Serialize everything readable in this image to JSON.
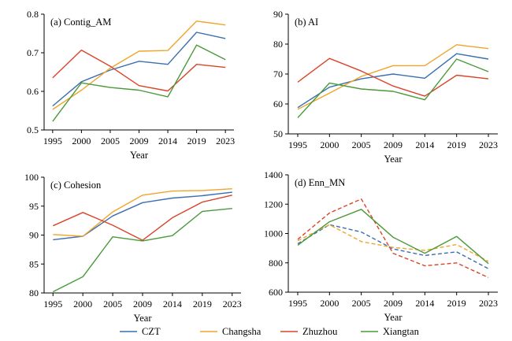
{
  "colors": {
    "CZT": "#3a6fb0",
    "Changsha": "#f0a52a",
    "Zhuzhou": "#d9452a",
    "Xiangtan": "#4a9a3a"
  },
  "legend": {
    "placement": "bottom-center",
    "items": [
      "CZT",
      "Changsha",
      "Zhuzhou",
      "Xiangtan"
    ]
  },
  "chart_data": [
    {
      "type": "line",
      "title": "(a) Contig_AM",
      "xlabel": "Year",
      "ylabel": "",
      "categories": [
        "1995",
        "2000",
        "2005",
        "2009",
        "2014",
        "2019",
        "2023"
      ],
      "ylim": [
        0.5,
        0.8
      ],
      "yticks": [
        "0.5",
        "0.6",
        "0.7",
        "0.8"
      ],
      "series": [
        {
          "name": "CZT",
          "values": [
            0.562,
            0.625,
            0.655,
            0.678,
            0.67,
            0.753,
            0.737
          ]
        },
        {
          "name": "Changsha",
          "values": [
            0.553,
            0.603,
            0.66,
            0.704,
            0.706,
            0.782,
            0.772
          ]
        },
        {
          "name": "Zhuzhou",
          "values": [
            0.635,
            0.707,
            0.665,
            0.615,
            0.601,
            0.67,
            0.662
          ]
        },
        {
          "name": "Xiangtan",
          "values": [
            0.522,
            0.622,
            0.61,
            0.603,
            0.586,
            0.72,
            0.682
          ]
        }
      ]
    },
    {
      "type": "line",
      "title": "(b) AI",
      "xlabel": "Year",
      "ylabel": "",
      "categories": [
        "1995",
        "2000",
        "2005",
        "2009",
        "2014",
        "2019",
        "2023"
      ],
      "ylim": [
        50,
        90
      ],
      "yticks": [
        "50",
        "60",
        "70",
        "80",
        "90"
      ],
      "series": [
        {
          "name": "CZT",
          "values": [
            58.8,
            65.6,
            68.4,
            70.0,
            68.6,
            76.8,
            75.0
          ]
        },
        {
          "name": "Changsha",
          "values": [
            58.2,
            63.6,
            69.2,
            72.8,
            72.8,
            79.8,
            78.5
          ]
        },
        {
          "name": "Zhuzhou",
          "values": [
            67.3,
            75.2,
            71.0,
            66.0,
            62.6,
            69.6,
            68.4
          ]
        },
        {
          "name": "Xiangtan",
          "values": [
            55.4,
            67.0,
            65.0,
            64.2,
            61.4,
            75.0,
            70.8
          ]
        }
      ]
    },
    {
      "type": "line",
      "title": "(c) Cohesion",
      "xlabel": "Year",
      "ylabel": "",
      "categories": [
        "1995",
        "2000",
        "2005",
        "2009",
        "2014",
        "2019",
        "2023"
      ],
      "ylim": [
        80,
        100
      ],
      "yticks": [
        "80",
        "85",
        "90",
        "95",
        "100"
      ],
      "series": [
        {
          "name": "CZT",
          "values": [
            89.2,
            89.8,
            93.3,
            95.6,
            96.4,
            96.8,
            97.4
          ]
        },
        {
          "name": "Changsha",
          "values": [
            90.1,
            89.8,
            94.0,
            96.9,
            97.6,
            97.7,
            98.0
          ]
        },
        {
          "name": "Zhuzhou",
          "values": [
            91.6,
            93.9,
            91.7,
            89.1,
            93.0,
            95.7,
            96.9
          ]
        },
        {
          "name": "Xiangtan",
          "values": [
            80.2,
            82.8,
            89.7,
            89.0,
            89.9,
            94.1,
            94.6
          ]
        }
      ]
    },
    {
      "type": "line",
      "title": "(d) Enn_MN",
      "xlabel": "Year",
      "ylabel": "",
      "categories": [
        "1995",
        "2000",
        "2005",
        "2009",
        "2014",
        "2019",
        "2023"
      ],
      "ylim": [
        600,
        1400
      ],
      "yticks": [
        "600",
        "800",
        "1000",
        "1200",
        "1400"
      ],
      "series": [
        {
          "name": "CZT",
          "values": [
            930,
            1060,
            1010,
            895,
            850,
            875,
            760
          ],
          "dash": "dashed"
        },
        {
          "name": "Changsha",
          "values": [
            950,
            1060,
            945,
            905,
            885,
            925,
            810
          ],
          "dash": "dashed"
        },
        {
          "name": "Zhuzhou",
          "values": [
            960,
            1140,
            1235,
            865,
            780,
            800,
            700
          ],
          "dash": "dashed"
        },
        {
          "name": "Xiangtan",
          "values": [
            920,
            1080,
            1165,
            975,
            865,
            980,
            795
          ]
        }
      ]
    }
  ]
}
